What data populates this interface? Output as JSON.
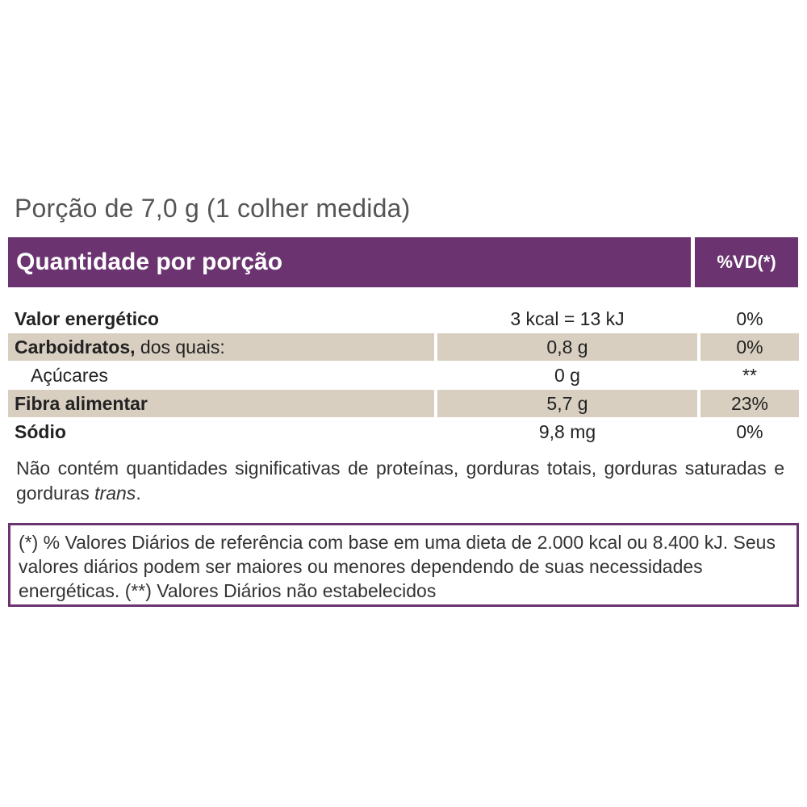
{
  "portion": "Porção de 7,0 g (1 colher medida)",
  "header": {
    "quantity_label": "Quantidade por porção",
    "vd_label": "%VD(*)"
  },
  "rows": [
    {
      "name_bold": "Valor energético",
      "name_rest": "",
      "quantity": "3 kcal = 13 kJ",
      "vd": "0%"
    },
    {
      "name_bold": "Carboidratos,",
      "name_rest": " dos quais:",
      "quantity": "0,8 g",
      "vd": "0%"
    },
    {
      "name_bold": "",
      "name_rest": "Açúcares",
      "quantity": "0 g",
      "vd": "**"
    },
    {
      "name_bold": "Fibra alimentar",
      "name_rest": "",
      "quantity": "5,7 g",
      "vd": "23%"
    },
    {
      "name_bold": "Sódio",
      "name_rest": "",
      "quantity": "9,8 mg",
      "vd": "0%"
    }
  ],
  "note": {
    "text": "Não contém quantidades significativas de proteínas, gorduras totais, gorduras saturadas e gorduras ",
    "italic": "trans",
    "end": "."
  },
  "footnote": "(*) % Valores Diários de referência com base em uma dieta de 2.000 kcal ou 8.400 kJ. Seus valores diários podem ser maiores ou menores dependendo de suas necessidades energéticas. (**) Valores Diários não estabelecidos",
  "colors": {
    "header_bg": "#6b3470",
    "shade_bg": "#d8cfc1"
  }
}
